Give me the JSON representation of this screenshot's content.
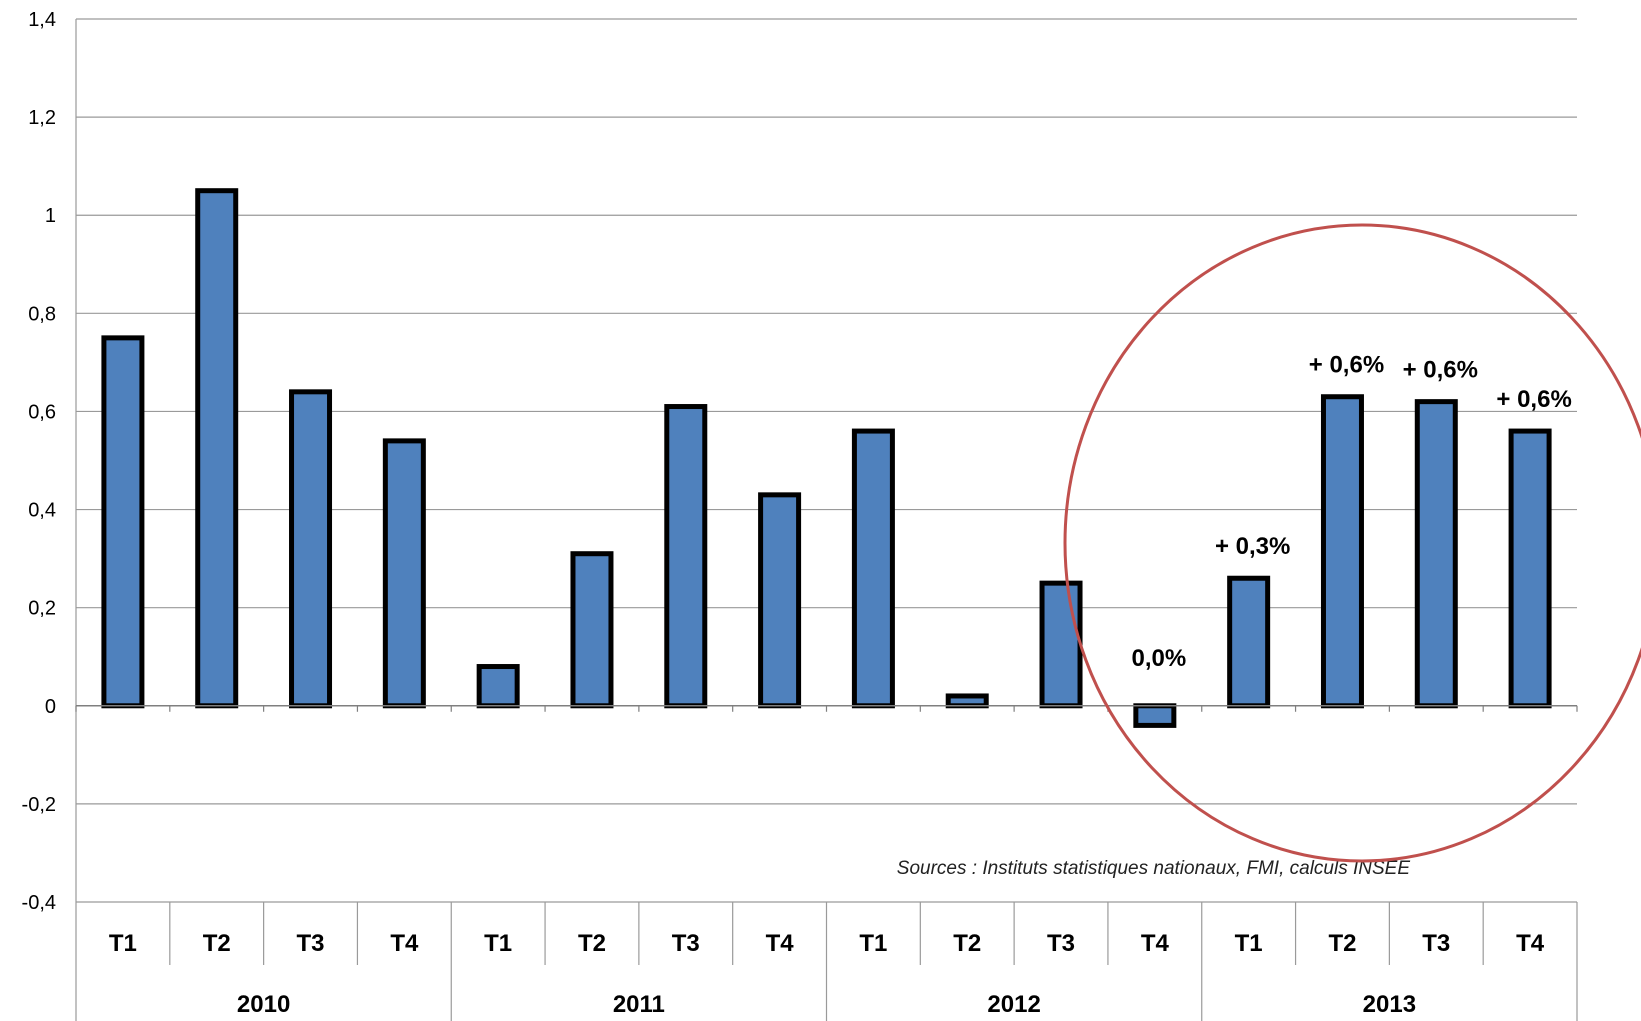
{
  "chart_data": {
    "type": "bar",
    "categories": [
      "T1",
      "T2",
      "T3",
      "T4",
      "T1",
      "T2",
      "T3",
      "T4",
      "T1",
      "T2",
      "T3",
      "T4",
      "T1",
      "T2",
      "T3",
      "T4"
    ],
    "groups": [
      {
        "label": "2010",
        "span": 4
      },
      {
        "label": "2011",
        "span": 4
      },
      {
        "label": "2012",
        "span": 4
      },
      {
        "label": "2013",
        "span": 4
      }
    ],
    "values": [
      0.75,
      1.05,
      0.64,
      0.54,
      0.08,
      0.31,
      0.61,
      0.43,
      0.56,
      0.02,
      0.25,
      -0.04,
      0.26,
      0.63,
      0.62,
      0.56
    ],
    "ylim": [
      -0.4,
      1.4
    ],
    "yticks": [
      -0.4,
      -0.2,
      0,
      0.2,
      0.4,
      0.6,
      0.8,
      1,
      1.2,
      1.4
    ],
    "ytick_labels": [
      "-0,4",
      "-0,2",
      "0",
      "0,2",
      "0,4",
      "0,6",
      "0,8",
      "1",
      "1,2",
      "1,4"
    ],
    "grid": true,
    "bar_color": "#4F81BD",
    "bar_border_color": "#000000",
    "annotations": [
      {
        "category_index": 11,
        "text": "0,0%"
      },
      {
        "category_index": 12,
        "text": "+ 0,3%"
      },
      {
        "category_index": 13,
        "text": "+ 0,6%"
      },
      {
        "category_index": 14,
        "text": "+ 0,6%"
      },
      {
        "category_index": 15,
        "text": "+ 0,6%"
      }
    ],
    "highlight_circle_color": "#C0504D",
    "source": "Sources : Instituts statistiques nationaux, FMI, calculs INSEE"
  }
}
